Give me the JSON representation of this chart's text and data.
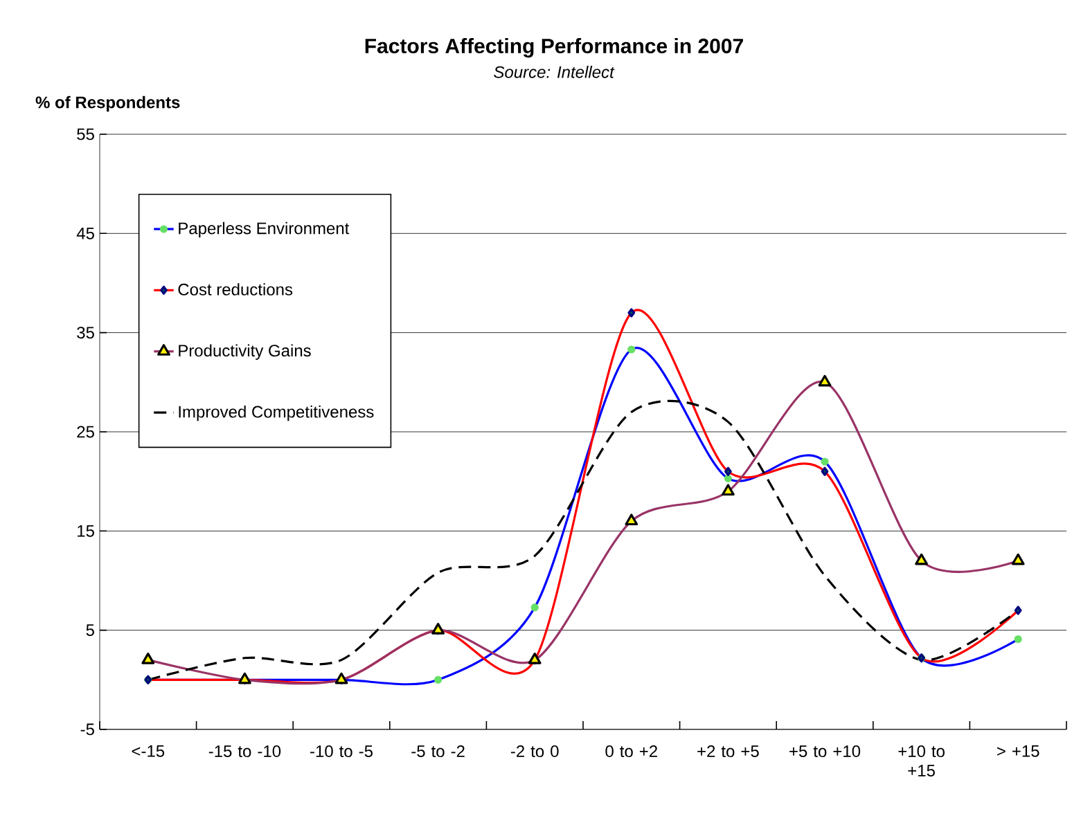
{
  "chart_data": {
    "type": "line",
    "title": "Factors Affecting Performance in 2007",
    "subtitle": "*Source: Intellect*",
    "ylabel": "% of Respondents",
    "categories": [
      "<-15",
      "-15 to -10",
      "-10 to -5",
      "-5 to -2",
      "-2 to 0",
      "0 to +2",
      "+2 to +5",
      "+5 to +10",
      "+10 to +15",
      "> +15"
    ],
    "series": [
      {
        "name": "Paperless Environment",
        "color": "#0000ff",
        "marker": "circle",
        "values": [
          0,
          0,
          0,
          0,
          7.3,
          33.3,
          20.3,
          22,
          2.2,
          4.1
        ]
      },
      {
        "name": "Cost reductions",
        "color": "#ff0000",
        "marker": "diamond",
        "values": [
          0,
          0,
          0,
          5,
          2,
          37,
          21,
          21,
          2.2,
          7
        ]
      },
      {
        "name": "Productivity Gains",
        "color": "#993366",
        "marker": "triangle",
        "values": [
          2,
          0,
          0,
          5,
          2,
          16,
          19,
          30,
          12,
          12
        ]
      },
      {
        "name": "Improved Competitiveness",
        "color": "#000000",
        "marker": "none",
        "line_style": "dashed",
        "values": [
          0,
          2.2,
          2,
          10.8,
          12.5,
          27,
          26,
          10.5,
          2,
          7
        ]
      }
    ],
    "ylim": [
      -5,
      55
    ],
    "yticks": [
      -5,
      5,
      15,
      25,
      35,
      45,
      55
    ],
    "grid": "y",
    "legend": "top left"
  }
}
